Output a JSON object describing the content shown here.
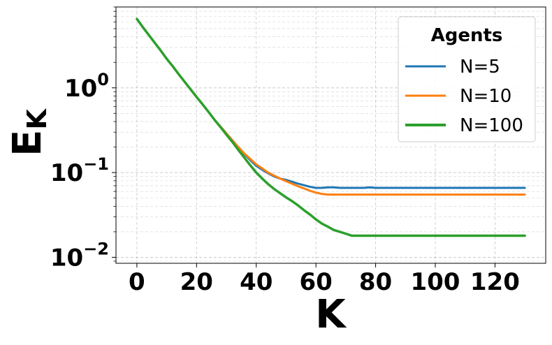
{
  "chart_data": {
    "type": "line",
    "title": "",
    "xlabel": "K",
    "ylabel_main": "E",
    "ylabel_sub": "K",
    "xlim": [
      -7,
      137
    ],
    "ylim": [
      0.0085,
      9
    ],
    "yscale": "log",
    "grid": true,
    "grid_style": "dashed",
    "legend": {
      "title": "Agents",
      "placement": "top-right"
    },
    "x_ticks": [
      0,
      20,
      40,
      60,
      80,
      100,
      120
    ],
    "x_tick_labels": [
      "0",
      "20",
      "40",
      "60",
      "80",
      "100",
      "120"
    ],
    "y_ticks": [
      {
        "value": 1,
        "base": "10",
        "exp": "0"
      },
      {
        "value": 0.1,
        "base": "10",
        "exp": "−1"
      },
      {
        "value": 0.01,
        "base": "10",
        "exp": "−2"
      }
    ],
    "series": [
      {
        "name": "N=5",
        "color": "#1f77b4",
        "values": [
          6.5,
          5.2,
          4.2,
          3.4,
          2.75,
          2.2,
          1.8,
          1.45,
          1.18,
          0.96,
          0.78,
          0.64,
          0.52,
          0.42,
          0.35,
          0.29,
          0.24,
          0.2,
          0.165,
          0.14,
          0.12,
          0.108,
          0.098,
          0.09,
          0.085,
          0.082,
          0.078,
          0.074,
          0.071,
          0.068,
          0.066,
          0.066,
          0.067,
          0.067,
          0.066,
          0.066,
          0.066,
          0.066,
          0.066,
          0.067,
          0.066,
          0.066,
          0.066,
          0.066,
          0.066,
          0.066,
          0.066,
          0.066,
          0.066,
          0.066,
          0.066,
          0.066,
          0.066,
          0.066,
          0.066,
          0.066,
          0.066,
          0.066,
          0.066,
          0.066,
          0.066,
          0.066,
          0.066,
          0.066,
          0.066,
          0.066
        ]
      },
      {
        "name": "N=10",
        "color": "#ff7f0e",
        "values": [
          6.5,
          5.2,
          4.2,
          3.4,
          2.75,
          2.2,
          1.8,
          1.45,
          1.18,
          0.96,
          0.78,
          0.64,
          0.52,
          0.42,
          0.35,
          0.29,
          0.24,
          0.2,
          0.168,
          0.145,
          0.125,
          0.112,
          0.1,
          0.092,
          0.085,
          0.079,
          0.074,
          0.069,
          0.065,
          0.061,
          0.058,
          0.056,
          0.055,
          0.055,
          0.055,
          0.055,
          0.055,
          0.055,
          0.055,
          0.055,
          0.055,
          0.055,
          0.055,
          0.055,
          0.055,
          0.055,
          0.055,
          0.055,
          0.055,
          0.055,
          0.055,
          0.055,
          0.055,
          0.055,
          0.055,
          0.055,
          0.055,
          0.055,
          0.055,
          0.055,
          0.055,
          0.055,
          0.055,
          0.055,
          0.055,
          0.055
        ]
      },
      {
        "name": "N=100",
        "color": "#2ca02c",
        "values": [
          6.5,
          5.2,
          4.2,
          3.4,
          2.75,
          2.2,
          1.8,
          1.45,
          1.18,
          0.96,
          0.78,
          0.64,
          0.52,
          0.42,
          0.345,
          0.28,
          0.23,
          0.185,
          0.15,
          0.122,
          0.1,
          0.085,
          0.073,
          0.064,
          0.057,
          0.051,
          0.046,
          0.041,
          0.036,
          0.032,
          0.028,
          0.025,
          0.023,
          0.021,
          0.02,
          0.019,
          0.018,
          0.018,
          0.018,
          0.018,
          0.018,
          0.018,
          0.018,
          0.018,
          0.018,
          0.018,
          0.018,
          0.018,
          0.018,
          0.018,
          0.018,
          0.018,
          0.018,
          0.018,
          0.018,
          0.018,
          0.018,
          0.018,
          0.018,
          0.018,
          0.018,
          0.018,
          0.018,
          0.018,
          0.018,
          0.018
        ]
      }
    ],
    "x_step": 2
  }
}
